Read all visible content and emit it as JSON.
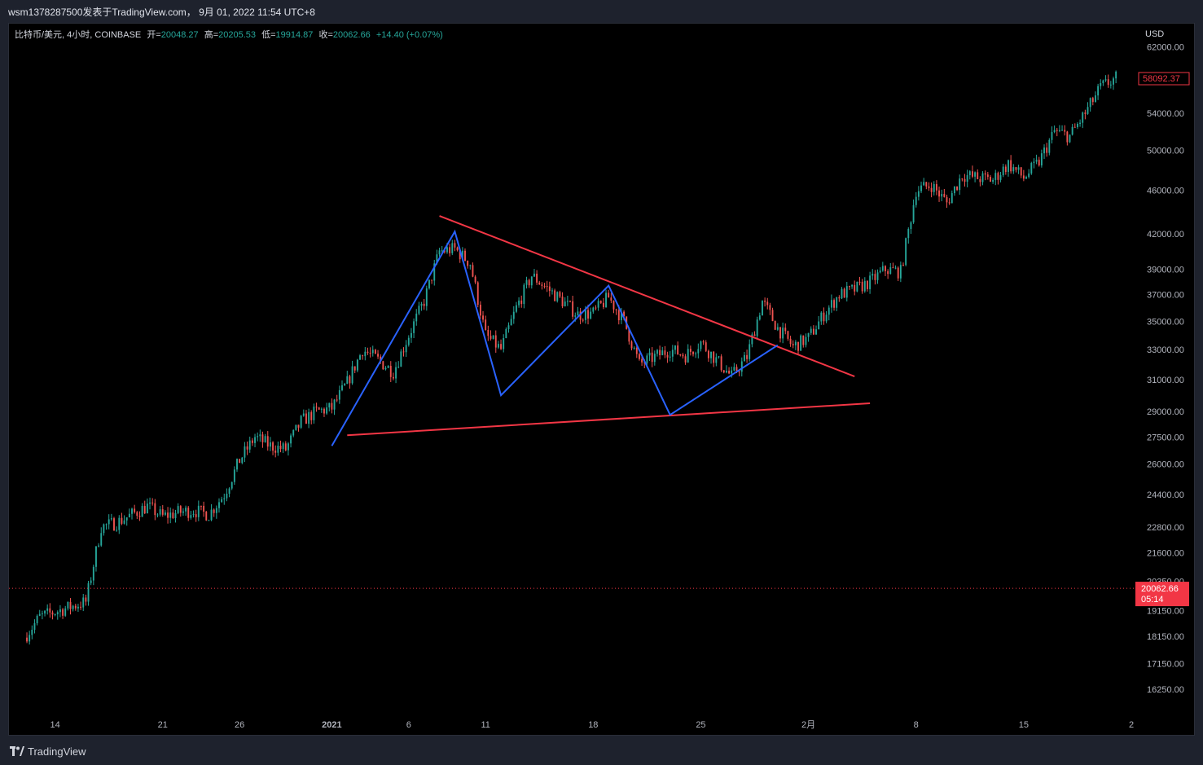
{
  "header": {
    "title": "wsm1378287500发表于TradingView.com， 9月 01, 2022 11:54 UTC+8"
  },
  "legend": {
    "symbol": "比特币/美元, 4小时, COINBASE",
    "open_label": "开=",
    "open": "20048.27",
    "high_label": "高=",
    "high": "20205.53",
    "low_label": "低=",
    "low": "19914.87",
    "close_label": "收=",
    "close": "20062.66",
    "change": "+14.40 (+0.07%)"
  },
  "footer": {
    "brand": "TradingView",
    "icon": "tradingview-logo-icon"
  },
  "colors": {
    "up": "#26a69a",
    "down": "#ef5350",
    "trendline": "#f23645",
    "pattern": "#2962ff",
    "price_tag": "#f23645",
    "background": "#000000"
  },
  "chart_data": {
    "type": "candlestick",
    "currency": "USD",
    "scale": "log",
    "ylim": [
      15500,
      64000
    ],
    "y_ticks": [
      "62000.00",
      "54000.00",
      "50000.00",
      "46000.00",
      "42000.00",
      "39000.00",
      "37000.00",
      "35000.00",
      "33000.00",
      "31000.00",
      "29000.00",
      "27500.00",
      "26000.00",
      "24400.00",
      "22800.00",
      "21600.00",
      "20350.00",
      "19150.00",
      "18150.00",
      "17150.00",
      "16250.00"
    ],
    "x_ticks": [
      "14",
      "21",
      "26",
      "2021",
      "6",
      "11",
      "18",
      "25",
      "2月",
      "8",
      "15",
      "2"
    ],
    "current_price": {
      "value": "20062.66",
      "countdown": "05:14"
    },
    "last_visible_price": "58092.37",
    "price_path": [
      [
        "2020-12-12",
        18100
      ],
      [
        "2020-12-13",
        18900
      ],
      [
        "2020-12-15",
        19300
      ],
      [
        "2020-12-16",
        19500
      ],
      [
        "2020-12-17",
        22800
      ],
      [
        "2020-12-18",
        23000
      ],
      [
        "2020-12-19",
        23400
      ],
      [
        "2020-12-20",
        23800
      ],
      [
        "2020-12-21",
        23300
      ],
      [
        "2020-12-22",
        23500
      ],
      [
        "2020-12-23",
        23600
      ],
      [
        "2020-12-24",
        23400
      ],
      [
        "2020-12-25",
        24400
      ],
      [
        "2020-12-26",
        26200
      ],
      [
        "2020-12-27",
        27500
      ],
      [
        "2020-12-28",
        27000
      ],
      [
        "2020-12-29",
        26800
      ],
      [
        "2020-12-30",
        28400
      ],
      [
        "2020-12-31",
        29000
      ],
      [
        "2021-01-01",
        29200
      ],
      [
        "2021-01-02",
        30800
      ],
      [
        "2021-01-03",
        33000
      ],
      [
        "2021-01-04",
        32300
      ],
      [
        "2021-01-05",
        31500
      ],
      [
        "2021-01-06",
        34000
      ],
      [
        "2021-01-07",
        36500
      ],
      [
        "2021-01-08",
        40500
      ],
      [
        "2021-01-09",
        40700
      ],
      [
        "2021-01-10",
        39500
      ],
      [
        "2021-01-11",
        34000
      ],
      [
        "2021-01-12",
        33000
      ],
      [
        "2021-01-13",
        36000
      ],
      [
        "2021-01-14",
        38500
      ],
      [
        "2021-01-15",
        37500
      ],
      [
        "2021-01-16",
        36500
      ],
      [
        "2021-01-17",
        35500
      ],
      [
        "2021-01-18",
        35600
      ],
      [
        "2021-01-19",
        36800
      ],
      [
        "2021-01-20",
        35000
      ],
      [
        "2021-01-21",
        32000
      ],
      [
        "2021-01-22",
        32500
      ],
      [
        "2021-01-23",
        33000
      ],
      [
        "2021-01-24",
        32600
      ],
      [
        "2021-01-25",
        33500
      ],
      [
        "2021-01-26",
        32300
      ],
      [
        "2021-01-27",
        31200
      ],
      [
        "2021-01-28",
        32500
      ],
      [
        "2021-01-29",
        36500
      ],
      [
        "2021-01-30",
        34500
      ],
      [
        "2021-01-31",
        33200
      ],
      [
        "2021-02-01",
        33800
      ],
      [
        "2021-02-02",
        35500
      ],
      [
        "2021-02-03",
        37000
      ],
      [
        "2021-02-04",
        37400
      ],
      [
        "2021-02-05",
        38000
      ],
      [
        "2021-02-06",
        39000
      ],
      [
        "2021-02-07",
        38800
      ],
      [
        "2021-02-08",
        46000
      ],
      [
        "2021-02-09",
        46500
      ],
      [
        "2021-02-10",
        44800
      ],
      [
        "2021-02-11",
        47500
      ],
      [
        "2021-02-12",
        47200
      ],
      [
        "2021-02-13",
        47000
      ],
      [
        "2021-02-14",
        48600
      ],
      [
        "2021-02-15",
        47200
      ],
      [
        "2021-02-16",
        48800
      ],
      [
        "2021-02-17",
        52000
      ],
      [
        "2021-02-18",
        51500
      ],
      [
        "2021-02-19",
        54000
      ],
      [
        "2021-02-20",
        57000
      ],
      [
        "2021-02-21",
        58092
      ]
    ],
    "annotations": [
      {
        "type": "trendline",
        "color": "#f23645",
        "points": [
          [
            "2021-01-08",
            43600
          ],
          [
            "2021-02-04",
            31200
          ]
        ]
      },
      {
        "type": "trendline",
        "color": "#f23645",
        "points": [
          [
            "2021-01-02",
            27600
          ],
          [
            "2021-02-05",
            29500
          ]
        ]
      },
      {
        "type": "polyline",
        "color": "#2962ff",
        "points": [
          [
            "2021-01-01",
            27000
          ],
          [
            "2021-01-09",
            42200
          ],
          [
            "2021-01-12",
            30000
          ],
          [
            "2021-01-19",
            37700
          ],
          [
            "2021-01-23",
            28800
          ],
          [
            "2021-01-30",
            33300
          ]
        ]
      }
    ]
  }
}
